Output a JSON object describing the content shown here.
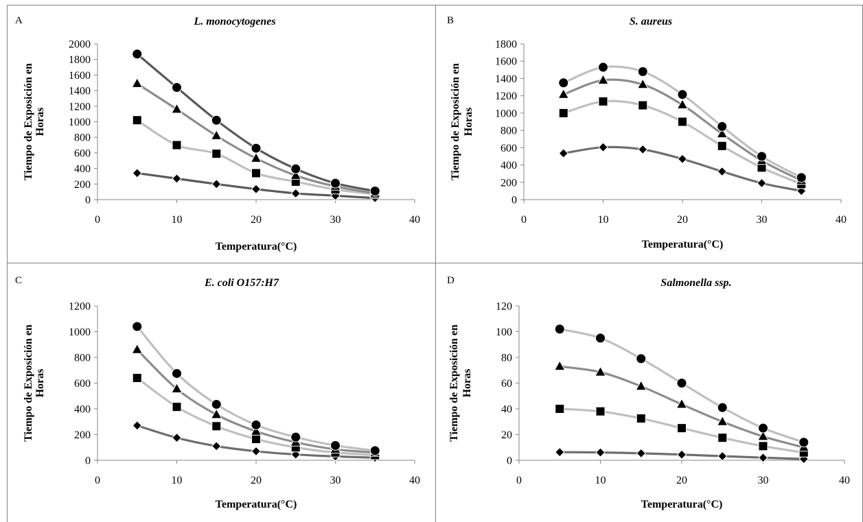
{
  "chart_data": [
    {
      "type": "line",
      "panel_letter": "A",
      "title": "L. monocytogenes",
      "xlabel": "Temperatura(°C)",
      "ylabel_lines": [
        "Tiempo de Exposición en",
        "Horas"
      ],
      "xlim": [
        0,
        40
      ],
      "ylim": [
        0,
        2000
      ],
      "xticks": [
        0,
        10,
        20,
        30,
        40
      ],
      "yticks": [
        0,
        200,
        400,
        600,
        800,
        1000,
        1200,
        1400,
        1600,
        1800,
        2000
      ],
      "x": [
        5,
        10,
        15,
        20,
        25,
        30,
        35
      ],
      "series": [
        {
          "marker": "diamond",
          "color": "#595959",
          "values": [
            340,
            270,
            200,
            135,
            80,
            50,
            20
          ]
        },
        {
          "marker": "square",
          "color": "#bfbfbf",
          "values": [
            1020,
            700,
            590,
            340,
            230,
            130,
            70
          ]
        },
        {
          "marker": "triangle",
          "color": "#8c8c8c",
          "values": [
            1490,
            1160,
            820,
            530,
            310,
            170,
            80
          ]
        },
        {
          "marker": "circle",
          "color": "#595959",
          "values": [
            1870,
            1440,
            1020,
            660,
            395,
            210,
            110
          ]
        }
      ]
    },
    {
      "type": "line",
      "panel_letter": "B",
      "title": "S. aureus",
      "xlabel": "Temperatura(°C)",
      "ylabel_lines": [
        "Tiempo de Exposición en",
        "Horas"
      ],
      "xlim": [
        0,
        40
      ],
      "ylim": [
        0,
        1800
      ],
      "xticks": [
        0,
        10,
        20,
        30,
        40
      ],
      "yticks": [
        0,
        200,
        400,
        600,
        800,
        1000,
        1200,
        1400,
        1600,
        1800
      ],
      "x": [
        5,
        10,
        15,
        20,
        25,
        30,
        35
      ],
      "series": [
        {
          "marker": "diamond",
          "color": "#6e6e6e",
          "values": [
            535,
            605,
            580,
            470,
            325,
            190,
            100
          ]
        },
        {
          "marker": "square",
          "color": "#bfbfbf",
          "values": [
            1000,
            1135,
            1090,
            900,
            620,
            370,
            180
          ]
        },
        {
          "marker": "triangle",
          "color": "#8c8c8c",
          "values": [
            1215,
            1380,
            1330,
            1095,
            760,
            450,
            220
          ]
        },
        {
          "marker": "circle",
          "color": "#bfbfbf",
          "values": [
            1350,
            1530,
            1480,
            1215,
            845,
            500,
            255
          ]
        }
      ]
    },
    {
      "type": "line",
      "panel_letter": "C",
      "title": "E. coli O157:H7",
      "xlabel": "Temperatura(°C)",
      "ylabel_lines": [
        "Tiempo de Exposición en",
        "Horas"
      ],
      "xlim": [
        0,
        40
      ],
      "ylim": [
        0,
        1200
      ],
      "xticks": [
        0,
        10,
        20,
        30,
        40
      ],
      "yticks": [
        0,
        200,
        400,
        600,
        800,
        1000,
        1200
      ],
      "x": [
        5,
        10,
        15,
        20,
        25,
        30,
        35
      ],
      "series": [
        {
          "marker": "diamond",
          "color": "#6e6e6e",
          "values": [
            270,
            175,
            110,
            70,
            45,
            30,
            20
          ]
        },
        {
          "marker": "square",
          "color": "#bfbfbf",
          "values": [
            640,
            415,
            265,
            165,
            100,
            60,
            40
          ]
        },
        {
          "marker": "triangle",
          "color": "#8c8c8c",
          "values": [
            860,
            555,
            355,
            225,
            140,
            85,
            60
          ]
        },
        {
          "marker": "circle",
          "color": "#bfbfbf",
          "values": [
            1040,
            675,
            435,
            275,
            180,
            115,
            75
          ]
        }
      ]
    },
    {
      "type": "line",
      "panel_letter": "D",
      "title": "Salmonella ssp.",
      "xlabel": "Temperatura(°C)",
      "ylabel_lines": [
        "Tiempo de Exposición en",
        "Horas"
      ],
      "xlim": [
        0,
        40
      ],
      "ylim": [
        0,
        120
      ],
      "xticks": [
        0,
        10,
        20,
        30,
        40
      ],
      "yticks": [
        0,
        20,
        40,
        60,
        80,
        100,
        120
      ],
      "x": [
        5,
        10,
        15,
        20,
        25,
        30,
        35
      ],
      "series": [
        {
          "marker": "diamond",
          "color": "#6e6e6e",
          "values": [
            6.3,
            6.1,
            5.4,
            4.4,
            3.2,
            2,
            1
          ]
        },
        {
          "marker": "square",
          "color": "#bfbfbf",
          "values": [
            40,
            38,
            32.5,
            25,
            17.5,
            11,
            6
          ]
        },
        {
          "marker": "triangle",
          "color": "#8c8c8c",
          "values": [
            73,
            68.5,
            57.5,
            43.5,
            30,
            18.5,
            10
          ]
        },
        {
          "marker": "circle",
          "color": "#bfbfbf",
          "values": [
            102,
            95,
            79,
            60,
            41,
            25,
            14
          ]
        }
      ]
    }
  ]
}
